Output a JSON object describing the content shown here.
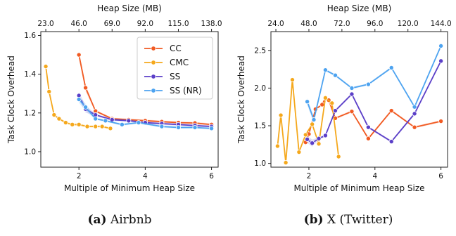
{
  "captions": [
    {
      "label": "(a)",
      "text": " Airbnb"
    },
    {
      "label": "(b)",
      "text": " X (Twitter)"
    }
  ],
  "chart_data": [
    {
      "type": "line",
      "name": "airbnb",
      "xlabel": "Multiple of Minimum Heap Size",
      "ylabel": "Task Clock Overhead",
      "top_xlabel": "Heap Size (MB)",
      "xlim": [
        0.85,
        6.2
      ],
      "ylim": [
        0.92,
        1.62
      ],
      "xticks": [
        2,
        4,
        6
      ],
      "yticks": [
        1.0,
        1.2,
        1.4,
        1.6
      ],
      "ytick_labels": [
        "1.0",
        "1.2",
        "1.4",
        "1.6"
      ],
      "top_ticks": [
        {
          "x": 1.0,
          "label": "23.0"
        },
        {
          "x": 2.0,
          "label": "46.0"
        },
        {
          "x": 3.0,
          "label": "69.0"
        },
        {
          "x": 4.0,
          "label": "92.0"
        },
        {
          "x": 5.0,
          "label": "115.0"
        },
        {
          "x": 6.0,
          "label": "138.0"
        }
      ],
      "legend": {
        "placement": "top-right",
        "entries": [
          "CC",
          "CMC",
          "SS",
          "SS (NR)"
        ]
      },
      "series": [
        {
          "name": "CC",
          "color": "#f15a22",
          "x": [
            2.0,
            2.2,
            2.5,
            3.0,
            3.5,
            4.0,
            4.5,
            5.0,
            5.5,
            6.0
          ],
          "y": [
            1.5,
            1.33,
            1.21,
            1.17,
            1.165,
            1.16,
            1.155,
            1.15,
            1.148,
            1.14
          ]
        },
        {
          "name": "CMC",
          "color": "#f5a81c",
          "x": [
            1.0,
            1.1,
            1.25,
            1.4,
            1.6,
            1.8,
            2.0,
            2.25,
            2.5,
            2.7,
            2.95
          ],
          "y": [
            1.44,
            1.31,
            1.19,
            1.17,
            1.15,
            1.14,
            1.14,
            1.13,
            1.13,
            1.13,
            1.12
          ]
        },
        {
          "name": "SS",
          "color": "#5b3fc8",
          "x": [
            2.0,
            2.2,
            2.5,
            3.0,
            3.5,
            4.0,
            4.5,
            5.0,
            5.5,
            6.0
          ],
          "y": [
            1.29,
            1.22,
            1.19,
            1.165,
            1.16,
            1.15,
            1.145,
            1.14,
            1.135,
            1.13
          ]
        },
        {
          "name": "SS (NR)",
          "color": "#4da3f0",
          "x": [
            2.0,
            2.2,
            2.5,
            2.8,
            3.3,
            3.8,
            4.5,
            5.0,
            5.5,
            6.0
          ],
          "y": [
            1.27,
            1.23,
            1.17,
            1.16,
            1.14,
            1.15,
            1.13,
            1.125,
            1.125,
            1.12
          ]
        }
      ]
    },
    {
      "type": "line",
      "name": "twitter",
      "xlabel": "Multiple of Minimum Heap Size",
      "ylabel": "Task Clock Overhead",
      "top_xlabel": "Heap Size (MB)",
      "xlim": [
        0.85,
        6.2
      ],
      "ylim": [
        0.95,
        2.75
      ],
      "xticks": [
        2,
        4,
        6
      ],
      "yticks": [
        1.0,
        1.5,
        2.0,
        2.5
      ],
      "ytick_labels": [
        "1.0",
        "1.5",
        "2.0",
        "2.5"
      ],
      "top_ticks": [
        {
          "x": 1.0,
          "label": "24.0"
        },
        {
          "x": 2.0,
          "label": "48.0"
        },
        {
          "x": 3.0,
          "label": "72.0"
        },
        {
          "x": 4.0,
          "label": "96.0"
        },
        {
          "x": 5.0,
          "label": "120.0"
        },
        {
          "x": 6.0,
          "label": "144.0"
        }
      ],
      "series": [
        {
          "name": "CC",
          "color": "#f15a22",
          "x": [
            1.9,
            2.0,
            2.2,
            2.4,
            2.5,
            2.6,
            2.8,
            3.3,
            3.8,
            4.5,
            5.2,
            6.0
          ],
          "y": [
            1.28,
            1.39,
            1.72,
            1.78,
            1.87,
            1.84,
            1.6,
            1.69,
            1.33,
            1.7,
            1.48,
            1.56
          ]
        },
        {
          "name": "CMC",
          "color": "#f5a81c",
          "x": [
            1.05,
            1.15,
            1.3,
            1.5,
            1.7,
            1.9,
            2.1,
            2.3,
            2.5,
            2.7,
            2.9
          ],
          "y": [
            1.23,
            1.64,
            1.01,
            2.11,
            1.15,
            1.38,
            1.52,
            1.26,
            1.87,
            1.8,
            1.09
          ]
        },
        {
          "name": "SS",
          "color": "#5b3fc8",
          "x": [
            1.95,
            2.1,
            2.3,
            2.5,
            2.8,
            3.3,
            3.8,
            4.5,
            5.2,
            6.0
          ],
          "y": [
            1.32,
            1.27,
            1.33,
            1.37,
            1.7,
            1.92,
            1.48,
            1.29,
            1.66,
            2.36
          ]
        },
        {
          "name": "SS (NR)",
          "color": "#4da3f0",
          "x": [
            1.95,
            2.15,
            2.5,
            2.8,
            3.3,
            3.8,
            4.5,
            5.2,
            6.0
          ],
          "y": [
            1.82,
            1.58,
            2.24,
            2.17,
            2.0,
            2.05,
            2.27,
            1.75,
            2.56
          ]
        }
      ]
    }
  ]
}
